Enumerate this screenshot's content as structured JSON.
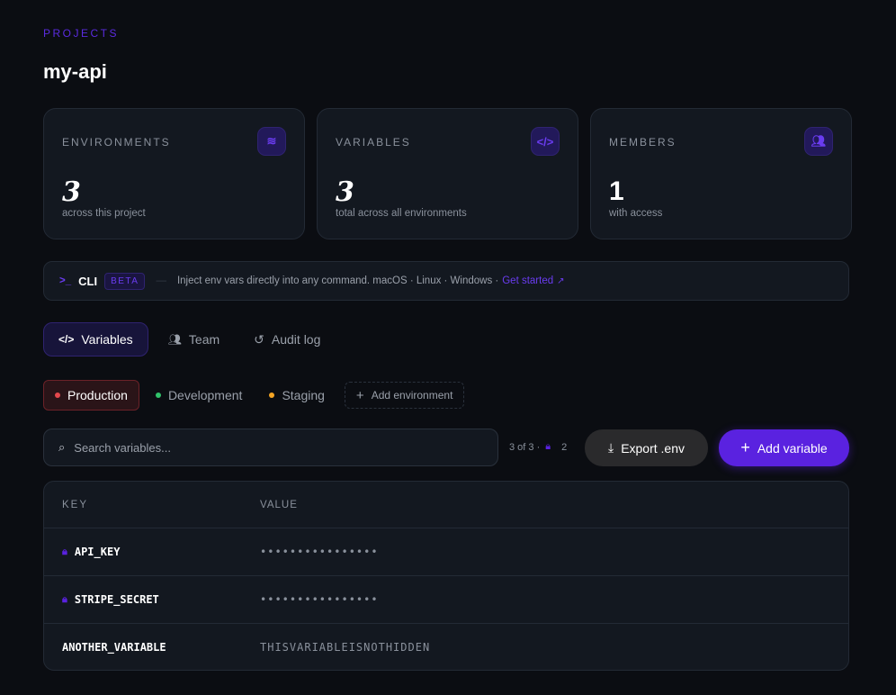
{
  "header": {
    "eyebrow": "PROJECTS",
    "title": "my-api"
  },
  "stats": [
    {
      "label": "ENVIRONMENTS",
      "value": "3",
      "sub": "across this project",
      "icon": "layers-icon"
    },
    {
      "label": "VARIABLES",
      "value": "3",
      "sub": "total across all environments",
      "icon": "code-icon"
    },
    {
      "label": "MEMBERS",
      "value": "1",
      "sub": "with access",
      "icon": "users-icon"
    }
  ],
  "cli": {
    "name": "CLI",
    "badge": "BETA",
    "text": "Inject env vars directly into any command. macOS · Linux · Windows ·",
    "link": "Get started"
  },
  "tabs": [
    {
      "label": "Variables",
      "active": true
    },
    {
      "label": "Team"
    },
    {
      "label": "Audit log"
    }
  ],
  "environments": [
    {
      "label": "Production",
      "color": "#e5484d",
      "active": true
    },
    {
      "label": "Development",
      "color": "#30c26a"
    },
    {
      "label": "Staging",
      "color": "#f5a524"
    }
  ],
  "add_environment": "Add environment",
  "search": {
    "placeholder": "Search variables..."
  },
  "count": {
    "text": "3 of 3 ·",
    "locked": "2"
  },
  "buttons": {
    "export": "Export .env",
    "add": "Add variable"
  },
  "table": {
    "headers": [
      "KEY",
      "VALUE"
    ],
    "rows": [
      {
        "key": "API_KEY",
        "value": "••••••••••••••••",
        "locked": true
      },
      {
        "key": "STRIPE_SECRET",
        "value": "••••••••••••••••",
        "locked": true
      },
      {
        "key": "ANOTHER_VARIABLE",
        "value": "THISVARIABLEISNOTHIDDEN",
        "locked": false
      }
    ]
  },
  "colors": {
    "accent": "#5a22e0",
    "background": "#0b0d12"
  }
}
